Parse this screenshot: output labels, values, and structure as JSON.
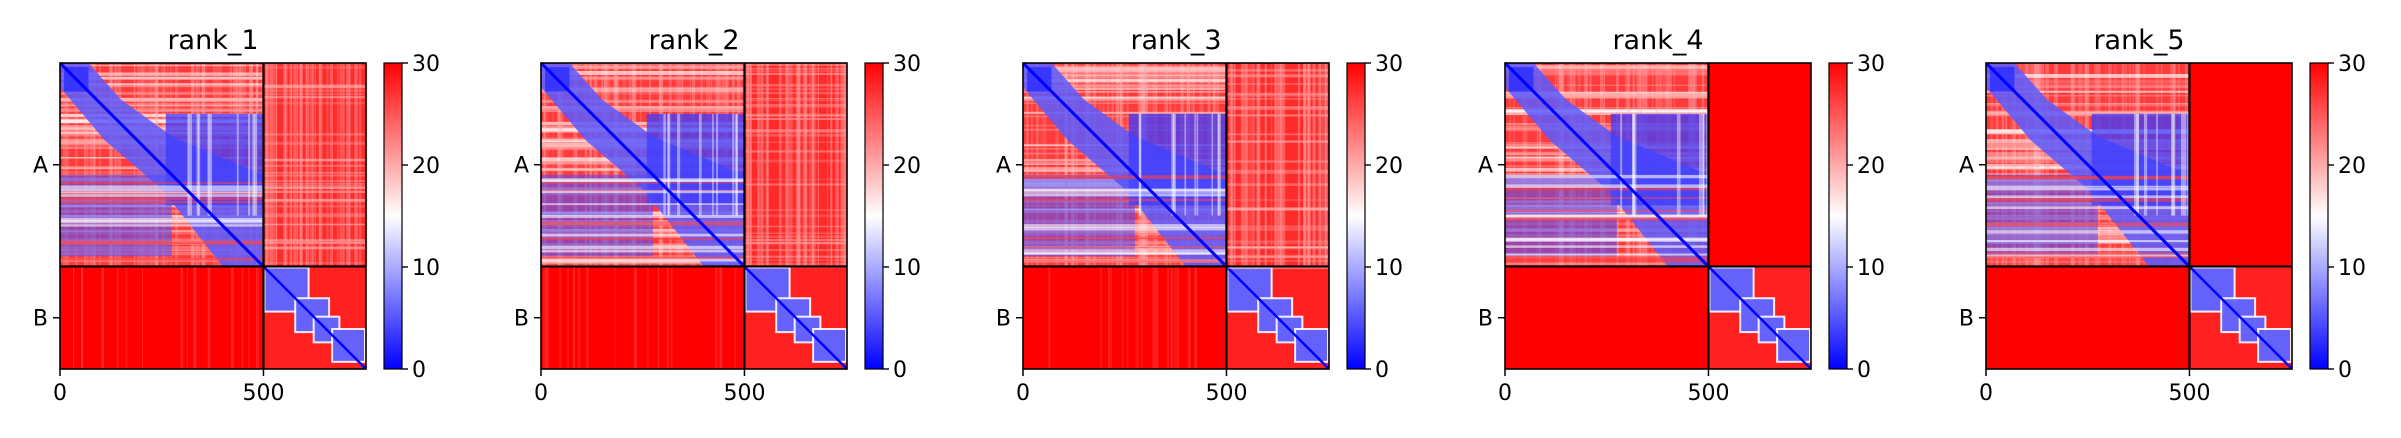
{
  "chart_data": {
    "type": "heatmap",
    "colormap": {
      "name": "bwr",
      "low": "#0000ff",
      "mid": "#ffffff",
      "high": "#ff0000"
    },
    "shared": {
      "xlim": [
        0,
        752
      ],
      "xticks": [
        0,
        500
      ],
      "xtick_labels": [
        "0",
        "500"
      ],
      "ytick_labels": [
        "A",
        "B"
      ],
      "chain_boundary": 500,
      "sequence_length": 752,
      "colorbar": {
        "range": [
          0,
          30
        ],
        "ticks": [
          0,
          10,
          20,
          30
        ],
        "tick_labels": [
          "0",
          "10",
          "20",
          "30"
        ]
      }
    },
    "panels": [
      {
        "title": "rank_1",
        "ab_block": "textured",
        "ba_block": "saturated-textured"
      },
      {
        "title": "rank_2",
        "ab_block": "textured",
        "ba_block": "saturated-textured"
      },
      {
        "title": "rank_3",
        "ab_block": "textured",
        "ba_block": "saturated-textured"
      },
      {
        "title": "rank_4",
        "ab_block": "saturated",
        "ba_block": "saturated"
      },
      {
        "title": "rank_5",
        "ab_block": "saturated",
        "ba_block": "saturated"
      }
    ]
  }
}
